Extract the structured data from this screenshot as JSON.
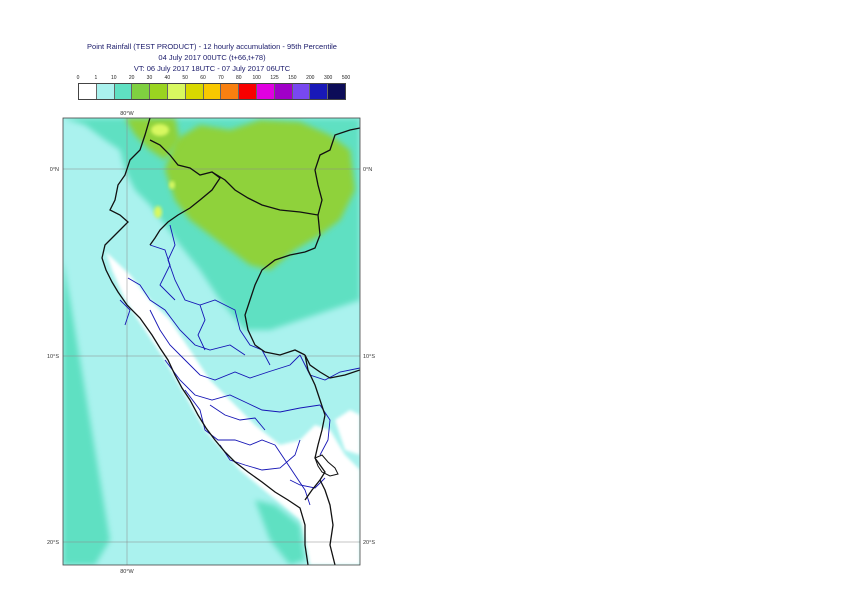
{
  "header": {
    "title_line1": "Point Rainfall (TEST PRODUCT) - 12 hourly accumulation - 95th Percentile",
    "title_line2": "04 July 2017 00UTC (t+66,t+78)",
    "title_line3": "VT: 06 July 2017 18UTC - 07 July 2017 06UTC"
  },
  "legend": {
    "ticks": [
      "0",
      "1",
      "10",
      "20",
      "30",
      "40",
      "50",
      "60",
      "70",
      "80",
      "100",
      "125",
      "150",
      "200",
      "300",
      "500"
    ],
    "colors": [
      "#ffffff",
      "#aaf2ee",
      "#5fe0c2",
      "#7fd040",
      "#9ad420",
      "#d8f860",
      "#d8d800",
      "#f8c800",
      "#f88010",
      "#f80000",
      "#e000e0",
      "#a000c8",
      "#7848f0",
      "#1818b8",
      "#0c0c58"
    ]
  },
  "map": {
    "lon_labels": [
      "80°W",
      "80°W"
    ],
    "lat_labels": [
      "0°N",
      "0°N",
      "10°S",
      "10°S",
      "20°S",
      "20°S"
    ],
    "colors": {
      "ocean_light": "#aaf2ee",
      "med": "#5fe0c2",
      "green": "#8fd23a",
      "yellowgreen": "#d8f860",
      "country_border": "#111111",
      "region_border": "#1515b5",
      "grid": "#8a8a8a"
    }
  }
}
